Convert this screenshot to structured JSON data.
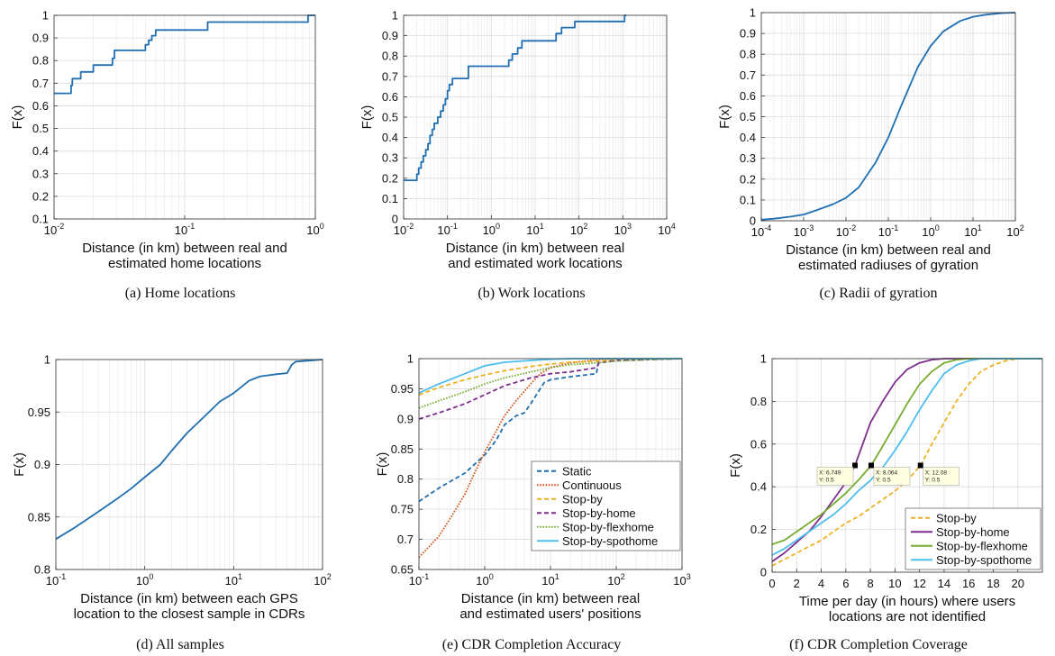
{
  "colors": {
    "blue": "#1f6fb2",
    "orange": "#d95319",
    "yellow": "#edb120",
    "purple": "#7e2f8e",
    "green": "#77ac30",
    "cyan": "#4dbeee",
    "grid": "#e6e6e6",
    "axis": "#333333",
    "datatip_bg": "#ffffe1"
  },
  "chart_data": [
    {
      "id": "a",
      "type": "line",
      "caption": "(a) Home locations",
      "xscale": "log",
      "xlim": [
        0.01,
        1
      ],
      "ylim": [
        0.1,
        1
      ],
      "xticks": [
        {
          "v": 0.01,
          "b": "10",
          "e": "-2"
        },
        {
          "v": 0.1,
          "b": "10",
          "e": "-1"
        },
        {
          "v": 1,
          "b": "10",
          "e": "0"
        }
      ],
      "yticks": [
        0.1,
        0.2,
        0.3,
        0.4,
        0.5,
        0.6,
        0.7,
        0.8,
        0.9,
        1
      ],
      "ytick_labels": [
        "0.1",
        "0.2",
        "0.3",
        "0.4",
        "0.5",
        "0.6",
        "0.7",
        "0.8",
        "0.9",
        "1"
      ],
      "ylabel": "F(x)",
      "xlabel_lines": [
        "Distance (in km) between real and",
        "estimated home locations"
      ],
      "series": [
        {
          "color": "blue",
          "style": "solid",
          "step": true,
          "x": [
            0.01,
            0.0128,
            0.0135,
            0.0138,
            0.016,
            0.02,
            0.028,
            0.029,
            0.05,
            0.053,
            0.056,
            0.06,
            0.15,
            0.85,
            0.88,
            1
          ],
          "y": [
            0.655,
            0.655,
            0.69,
            0.72,
            0.75,
            0.78,
            0.81,
            0.845,
            0.87,
            0.89,
            0.91,
            0.935,
            0.97,
            0.97,
            1,
            1
          ]
        }
      ]
    },
    {
      "id": "b",
      "type": "line",
      "caption": "(b) Work locations",
      "xscale": "log",
      "xlim": [
        0.01,
        10000
      ],
      "ylim": [
        0,
        1
      ],
      "xticks": [
        {
          "v": 0.01,
          "b": "10",
          "e": "-2"
        },
        {
          "v": 0.1,
          "b": "10",
          "e": "-1"
        },
        {
          "v": 1,
          "b": "10",
          "e": "0"
        },
        {
          "v": 10,
          "b": "10",
          "e": "1"
        },
        {
          "v": 100,
          "b": "10",
          "e": "2"
        },
        {
          "v": 1000,
          "b": "10",
          "e": "3"
        },
        {
          "v": 10000,
          "b": "10",
          "e": "4"
        }
      ],
      "yticks": [
        0,
        0.1,
        0.2,
        0.3,
        0.4,
        0.5,
        0.6,
        0.7,
        0.8,
        0.9,
        1
      ],
      "ytick_labels": [
        "0",
        "0.1",
        "0.2",
        "0.3",
        "0.4",
        "0.5",
        "0.6",
        "0.7",
        "0.8",
        "0.9",
        "1"
      ],
      "ylabel": "F(x)",
      "xlabel_lines": [
        "Distance (in km) between real",
        "and estimated work locations"
      ],
      "series": [
        {
          "color": "blue",
          "style": "solid",
          "step": true,
          "x": [
            0.01,
            0.018,
            0.02,
            0.022,
            0.025,
            0.028,
            0.032,
            0.036,
            0.04,
            0.045,
            0.05,
            0.06,
            0.07,
            0.08,
            0.09,
            0.1,
            0.11,
            0.13,
            0.3,
            2,
            2.5,
            3,
            4,
            5,
            20,
            30,
            40,
            80,
            1000,
            1100,
            1200
          ],
          "y": [
            0.19,
            0.19,
            0.22,
            0.25,
            0.28,
            0.31,
            0.34,
            0.37,
            0.41,
            0.44,
            0.47,
            0.5,
            0.53,
            0.56,
            0.59,
            0.63,
            0.66,
            0.69,
            0.75,
            0.75,
            0.78,
            0.81,
            0.84,
            0.875,
            0.875,
            0.91,
            0.94,
            0.97,
            0.97,
            1,
            1
          ]
        }
      ]
    },
    {
      "id": "c",
      "type": "line",
      "caption": "(c) Radii of gyration",
      "xscale": "log",
      "xlim": [
        0.0001,
        100
      ],
      "ylim": [
        0,
        1
      ],
      "xticks": [
        {
          "v": 0.0001,
          "b": "10",
          "e": "-4"
        },
        {
          "v": 0.001,
          "b": "10",
          "e": "-3"
        },
        {
          "v": 0.01,
          "b": "10",
          "e": "-2"
        },
        {
          "v": 0.1,
          "b": "10",
          "e": "-1"
        },
        {
          "v": 1,
          "b": "10",
          "e": "0"
        },
        {
          "v": 10,
          "b": "10",
          "e": "1"
        },
        {
          "v": 100,
          "b": "10",
          "e": "2"
        }
      ],
      "yticks": [
        0,
        0.1,
        0.2,
        0.3,
        0.4,
        0.5,
        0.6,
        0.7,
        0.8,
        0.9,
        1
      ],
      "ytick_labels": [
        "0",
        "0.1",
        "0.2",
        "0.3",
        "0.4",
        "0.5",
        "0.6",
        "0.7",
        "0.8",
        "0.9",
        "1"
      ],
      "ylabel": "F(x)",
      "xlabel_lines": [
        "Distance (in km) between real and",
        "estimated radiuses of gyration"
      ],
      "series": [
        {
          "color": "blue",
          "style": "solid",
          "step": false,
          "x": [
            0.0001,
            0.0002,
            0.0005,
            0.001,
            0.002,
            0.005,
            0.01,
            0.02,
            0.05,
            0.1,
            0.2,
            0.5,
            1,
            2,
            5,
            10,
            20,
            50,
            100
          ],
          "y": [
            0.005,
            0.01,
            0.02,
            0.03,
            0.05,
            0.08,
            0.11,
            0.16,
            0.28,
            0.4,
            0.55,
            0.74,
            0.84,
            0.91,
            0.96,
            0.98,
            0.99,
            0.998,
            1
          ]
        }
      ]
    },
    {
      "id": "d",
      "type": "line",
      "caption": "(d) All samples",
      "xscale": "log",
      "xlim": [
        0.1,
        100
      ],
      "ylim": [
        0.8,
        1
      ],
      "xticks": [
        {
          "v": 0.1,
          "b": "10",
          "e": "-1"
        },
        {
          "v": 1,
          "b": "10",
          "e": "0"
        },
        {
          "v": 10,
          "b": "10",
          "e": "1"
        },
        {
          "v": 100,
          "b": "10",
          "e": "2"
        }
      ],
      "yticks": [
        0.8,
        0.85,
        0.9,
        0.95,
        1
      ],
      "ytick_labels": [
        "0.8",
        "0.85",
        "0.9",
        "0.95",
        "1"
      ],
      "ylabel": "F(x)",
      "xlabel_lines": [
        "Distance (in km) between each GPS",
        "location to the closest sample in CDRs"
      ],
      "series": [
        {
          "color": "blue",
          "style": "solid",
          "step": false,
          "x": [
            0.1,
            0.15,
            0.2,
            0.3,
            0.5,
            0.7,
            1,
            1.5,
            2,
            3,
            5,
            7,
            10,
            15,
            20,
            30,
            40,
            45,
            50,
            70,
            100
          ],
          "y": [
            0.829,
            0.838,
            0.845,
            0.855,
            0.868,
            0.877,
            0.888,
            0.9,
            0.913,
            0.93,
            0.948,
            0.96,
            0.968,
            0.98,
            0.984,
            0.986,
            0.987,
            0.995,
            0.998,
            0.999,
            1
          ]
        }
      ]
    },
    {
      "id": "e",
      "type": "line",
      "caption": "(e) CDR Completion Accuracy",
      "xscale": "log",
      "xlim": [
        0.1,
        1000
      ],
      "ylim": [
        0.65,
        1
      ],
      "xticks": [
        {
          "v": 0.1,
          "b": "10",
          "e": "-1"
        },
        {
          "v": 1,
          "b": "10",
          "e": "0"
        },
        {
          "v": 10,
          "b": "10",
          "e": "1"
        },
        {
          "v": 100,
          "b": "10",
          "e": "2"
        },
        {
          "v": 1000,
          "b": "10",
          "e": "3"
        }
      ],
      "yticks": [
        0.65,
        0.7,
        0.75,
        0.8,
        0.85,
        0.9,
        0.95,
        1
      ],
      "ytick_labels": [
        "0.65",
        "0.7",
        "0.75",
        "0.8",
        "0.85",
        "0.9",
        "0.95",
        "1"
      ],
      "ylabel": "F(x)",
      "xlabel_lines": [
        "Distance (in km) between real",
        "and estimated users' positions"
      ],
      "legend": "bottom-right",
      "series": [
        {
          "name": "Static",
          "color": "blue",
          "style": "dashed",
          "step": false,
          "x": [
            0.1,
            0.2,
            0.5,
            1,
            1.5,
            2,
            3,
            4,
            5,
            7,
            8,
            10,
            20,
            50,
            55,
            100,
            1000
          ],
          "y": [
            0.763,
            0.785,
            0.81,
            0.84,
            0.865,
            0.89,
            0.905,
            0.91,
            0.925,
            0.95,
            0.96,
            0.965,
            0.97,
            0.975,
            1,
            1,
            1
          ]
        },
        {
          "name": "Continuous",
          "color": "orange",
          "style": "dotted",
          "step": false,
          "x": [
            0.1,
            0.2,
            0.3,
            0.5,
            0.7,
            1,
            1.5,
            2,
            3,
            5,
            7,
            10,
            20,
            50,
            100,
            1000
          ],
          "y": [
            0.67,
            0.705,
            0.735,
            0.775,
            0.81,
            0.845,
            0.88,
            0.905,
            0.93,
            0.958,
            0.975,
            0.985,
            0.993,
            0.998,
            1,
            1
          ]
        },
        {
          "name": "Stop-by",
          "color": "yellow",
          "style": "dashed",
          "step": false,
          "x": [
            0.1,
            0.2,
            0.5,
            1,
            2,
            5,
            10,
            20,
            50,
            100,
            300,
            1000
          ],
          "y": [
            0.94,
            0.952,
            0.965,
            0.973,
            0.98,
            0.987,
            0.991,
            0.994,
            0.996,
            0.998,
            1,
            1
          ]
        },
        {
          "name": "Stop-by-home",
          "color": "purple",
          "style": "dashed",
          "step": false,
          "x": [
            0.1,
            0.2,
            0.5,
            1,
            2,
            5,
            10,
            20,
            50,
            55,
            100,
            1000
          ],
          "y": [
            0.9,
            0.91,
            0.925,
            0.94,
            0.955,
            0.968,
            0.975,
            0.978,
            0.985,
            0.993,
            0.997,
            1
          ]
        },
        {
          "name": "Stop-by-flexhome",
          "color": "green",
          "style": "dotted",
          "step": false,
          "x": [
            0.1,
            0.2,
            0.5,
            1,
            2,
            5,
            10,
            20,
            50,
            100,
            300,
            1000
          ],
          "y": [
            0.918,
            0.93,
            0.945,
            0.958,
            0.968,
            0.978,
            0.985,
            0.99,
            0.993,
            0.996,
            0.998,
            1
          ]
        },
        {
          "name": "Stop-by-spothome",
          "color": "cyan",
          "style": "solid",
          "step": false,
          "x": [
            0.1,
            0.2,
            0.5,
            1,
            2,
            5,
            10,
            20,
            50,
            100,
            1000
          ],
          "y": [
            0.943,
            0.958,
            0.975,
            0.988,
            0.994,
            0.997,
            0.999,
            1,
            1,
            1,
            1
          ]
        }
      ]
    },
    {
      "id": "f",
      "type": "line",
      "caption": "(f) CDR Completion Coverage",
      "xscale": "linear",
      "xlim": [
        0,
        22
      ],
      "ylim": [
        0,
        1
      ],
      "xticks": [
        {
          "v": 0,
          "t": "0"
        },
        {
          "v": 2,
          "t": "2"
        },
        {
          "v": 4,
          "t": "4"
        },
        {
          "v": 6,
          "t": "6"
        },
        {
          "v": 8,
          "t": "8"
        },
        {
          "v": 10,
          "t": "10"
        },
        {
          "v": 12,
          "t": "12"
        },
        {
          "v": 14,
          "t": "14"
        },
        {
          "v": 16,
          "t": "16"
        },
        {
          "v": 18,
          "t": "18"
        },
        {
          "v": 20,
          "t": "20"
        }
      ],
      "yticks": [
        0,
        0.2,
        0.4,
        0.6,
        0.8,
        1
      ],
      "ytick_labels": [
        "0",
        "0.2",
        "0.4",
        "0.6",
        "0.8",
        "1"
      ],
      "ylabel": "F(x)",
      "xlabel_lines": [
        "Time per day (in hours) where users",
        "locations are not identified"
      ],
      "legend": "bottom-right",
      "series": [
        {
          "name": "Stop-by",
          "color": "yellow",
          "style": "dashed",
          "step": false,
          "x": [
            0,
            1,
            2,
            3,
            4,
            5,
            6,
            7,
            8,
            9,
            10,
            11,
            12.08,
            13,
            14,
            15,
            16,
            17,
            18,
            19,
            20,
            21,
            22
          ],
          "y": [
            0.03,
            0.06,
            0.09,
            0.12,
            0.15,
            0.19,
            0.23,
            0.26,
            0.3,
            0.34,
            0.38,
            0.43,
            0.5,
            0.6,
            0.7,
            0.8,
            0.88,
            0.94,
            0.97,
            0.99,
            1,
            1,
            1
          ]
        },
        {
          "name": "Stop-by-home",
          "color": "purple",
          "style": "solid",
          "step": false,
          "x": [
            0,
            1,
            2,
            3,
            4,
            5,
            6,
            6.749,
            7.5,
            8,
            9,
            10,
            11,
            12,
            13,
            14,
            15,
            16,
            22
          ],
          "y": [
            0.05,
            0.09,
            0.14,
            0.19,
            0.26,
            0.34,
            0.42,
            0.5,
            0.62,
            0.7,
            0.8,
            0.89,
            0.95,
            0.98,
            0.995,
            1,
            1,
            1,
            1
          ]
        },
        {
          "name": "Stop-by-flexhome",
          "color": "green",
          "style": "solid",
          "step": false,
          "x": [
            0,
            1,
            2,
            3,
            4,
            5,
            6,
            7,
            8.064,
            9,
            10,
            11,
            12,
            13,
            14,
            15,
            16,
            17,
            22
          ],
          "y": [
            0.13,
            0.15,
            0.19,
            0.23,
            0.27,
            0.32,
            0.37,
            0.43,
            0.5,
            0.59,
            0.69,
            0.79,
            0.88,
            0.94,
            0.98,
            0.995,
            1,
            1,
            1
          ]
        },
        {
          "name": "Stop-by-spothome",
          "color": "cyan",
          "style": "solid",
          "step": false,
          "x": [
            0,
            1,
            2,
            3,
            4,
            5,
            6,
            7,
            8,
            9,
            10,
            11,
            12,
            13,
            14,
            15,
            16,
            17,
            18,
            22
          ],
          "y": [
            0.08,
            0.11,
            0.15,
            0.19,
            0.23,
            0.27,
            0.32,
            0.38,
            0.43,
            0.49,
            0.57,
            0.66,
            0.76,
            0.85,
            0.93,
            0.97,
            0.99,
            1,
            1,
            1
          ]
        }
      ],
      "datatips": [
        {
          "x": 6.749,
          "y": 0.5,
          "lines": [
            "X: 6.749",
            "Y: 0.5"
          ],
          "anchor": "left"
        },
        {
          "x": 8.064,
          "y": 0.5,
          "lines": [
            "X: 8.064",
            "Y: 0.5"
          ],
          "anchor": "right"
        },
        {
          "x": 12.08,
          "y": 0.5,
          "lines": [
            "X: 12.08",
            "Y: 0.5"
          ],
          "anchor": "right"
        }
      ]
    }
  ]
}
